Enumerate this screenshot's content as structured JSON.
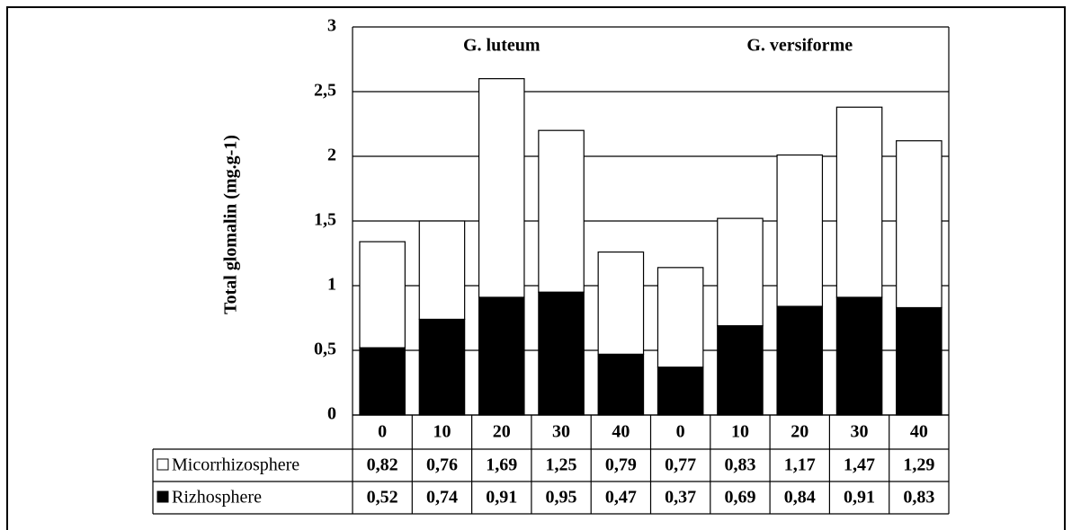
{
  "chart_data": {
    "type": "stacked_bar",
    "y_label": "Total glomalin (mg.g-1)",
    "annotations": [
      "G. luteum",
      "G. versiforme"
    ],
    "categories": [
      "0",
      "10",
      "20",
      "30",
      "40",
      "0",
      "10",
      "20",
      "30",
      "40"
    ],
    "series": [
      {
        "name": "Micorrhizosphere",
        "color": "#ffffff",
        "values": [
          0.82,
          0.76,
          1.69,
          1.25,
          0.79,
          0.77,
          0.83,
          1.17,
          1.47,
          1.29
        ],
        "value_labels": [
          "0,82",
          "0,76",
          "1,69",
          "1,25",
          "0,79",
          "0,77",
          "0,83",
          "1,17",
          "1,47",
          "1,29"
        ]
      },
      {
        "name": "Rizhosphere",
        "color": "#000000",
        "values": [
          0.52,
          0.74,
          0.91,
          0.95,
          0.47,
          0.37,
          0.69,
          0.84,
          0.91,
          0.83
        ],
        "value_labels": [
          "0,52",
          "0,74",
          "0,91",
          "0,95",
          "0,47",
          "0,37",
          "0,69",
          "0,84",
          "0,91",
          "0,83"
        ]
      }
    ],
    "ylim": [
      0,
      3
    ],
    "yticks": [
      0,
      {
        "value": 0.5,
        "label": "0,5"
      },
      1,
      {
        "value": 1.5,
        "label": "1,5"
      },
      2,
      {
        "value": 2.5,
        "label": "2,5"
      },
      3
    ],
    "grid": true
  }
}
